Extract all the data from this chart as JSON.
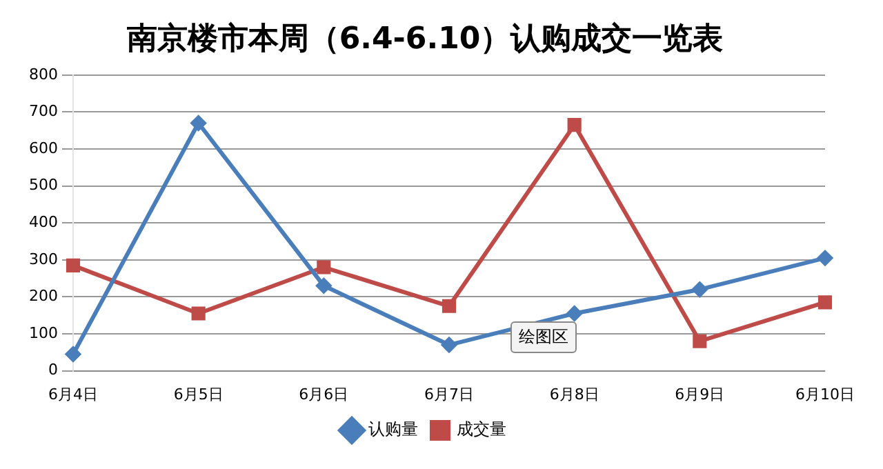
{
  "chart_data": {
    "type": "line",
    "title": "南京楼市本周（6.4-6.10）认购成交一览表",
    "categories": [
      "6月4日",
      "6月5日",
      "6月6日",
      "6月7日",
      "6月8日",
      "6月9日",
      "6月10日"
    ],
    "series": [
      {
        "name": "认购量",
        "color": "#4a7ebb",
        "values": [
          45,
          670,
          230,
          70,
          155,
          220,
          305
        ],
        "marker": "diamond"
      },
      {
        "name": "成交量",
        "color": "#be4b48",
        "values": [
          285,
          155,
          280,
          175,
          665,
          80,
          185
        ],
        "marker": "square"
      }
    ],
    "ylim": [
      0,
      800
    ],
    "yticks": [
      0,
      100,
      200,
      300,
      400,
      500,
      600,
      700,
      800
    ],
    "grid": "y",
    "legend": "bottom",
    "annotations": [
      "绘图区"
    ]
  }
}
